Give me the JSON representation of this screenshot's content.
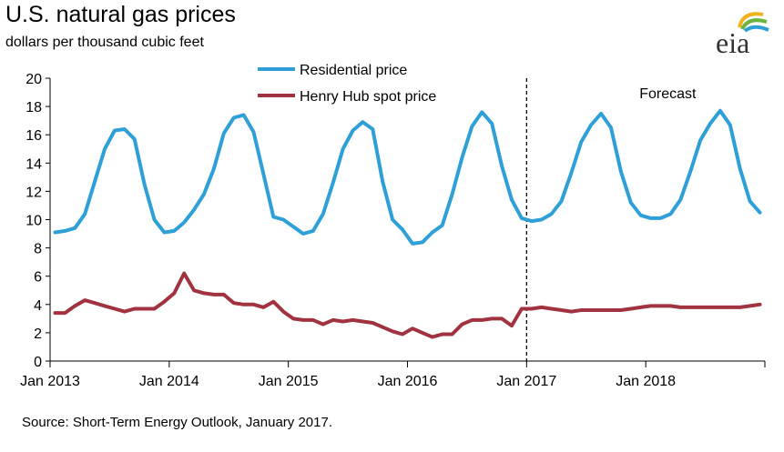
{
  "title": "U.S. natural gas prices",
  "subtitle": "dollars per thousand cubic feet",
  "source": "Source: Short-Term Energy Outlook, January 2017.",
  "logo_text": "eia",
  "forecast_label": "Forecast",
  "colors": {
    "residential": "#2f9fd8",
    "henry_hub": "#a0333f",
    "axis": "#000000"
  },
  "chart_data": {
    "type": "line",
    "ylim": [
      0,
      20
    ],
    "yticks": [
      "0",
      "2",
      "4",
      "6",
      "8",
      "10",
      "12",
      "14",
      "16",
      "18",
      "20"
    ],
    "xticks": [
      "Jan 2013",
      "Jan 2014",
      "Jan 2015",
      "Jan 2016",
      "Jan 2017",
      "Jan 2018"
    ],
    "forecast_start": "Jan 2017",
    "legend_placement": "top-center",
    "grid": false,
    "series": [
      {
        "name": "Residential price",
        "values": [
          9.1,
          9.2,
          9.4,
          10.4,
          12.7,
          15.0,
          16.3,
          16.4,
          15.7,
          12.5,
          10.0,
          9.1,
          9.2,
          9.8,
          10.7,
          11.8,
          13.6,
          16.1,
          17.2,
          17.4,
          16.2,
          13.2,
          10.2,
          10.0,
          9.5,
          9.0,
          9.2,
          10.4,
          12.6,
          15.0,
          16.3,
          16.9,
          16.4,
          12.7,
          10.0,
          9.3,
          8.3,
          8.4,
          9.1,
          9.6,
          11.8,
          14.4,
          16.6,
          17.6,
          16.8,
          13.8,
          11.4,
          10.1,
          9.9,
          10.0,
          10.4,
          11.3,
          13.3,
          15.5,
          16.7,
          17.5,
          16.5,
          13.4,
          11.2,
          10.3,
          10.1,
          10.1,
          10.4,
          11.4,
          13.4,
          15.6,
          16.8,
          17.7,
          16.7,
          13.6,
          11.3,
          10.5
        ]
      },
      {
        "name": "Henry Hub spot price",
        "values": [
          3.4,
          3.4,
          3.9,
          4.3,
          4.1,
          3.9,
          3.7,
          3.5,
          3.7,
          3.7,
          3.7,
          4.2,
          4.8,
          6.2,
          5.0,
          4.8,
          4.7,
          4.7,
          4.1,
          4.0,
          4.0,
          3.8,
          4.2,
          3.5,
          3.0,
          2.9,
          2.9,
          2.6,
          2.9,
          2.8,
          2.9,
          2.8,
          2.7,
          2.4,
          2.1,
          1.9,
          2.3,
          2.0,
          1.7,
          1.9,
          1.9,
          2.6,
          2.9,
          2.9,
          3.0,
          3.0,
          2.5,
          3.7,
          3.7,
          3.8,
          3.7,
          3.6,
          3.5,
          3.6,
          3.6,
          3.6,
          3.6,
          3.6,
          3.7,
          3.8,
          3.9,
          3.9,
          3.9,
          3.8,
          3.8,
          3.8,
          3.8,
          3.8,
          3.8,
          3.8,
          3.9,
          4.0
        ]
      }
    ]
  }
}
